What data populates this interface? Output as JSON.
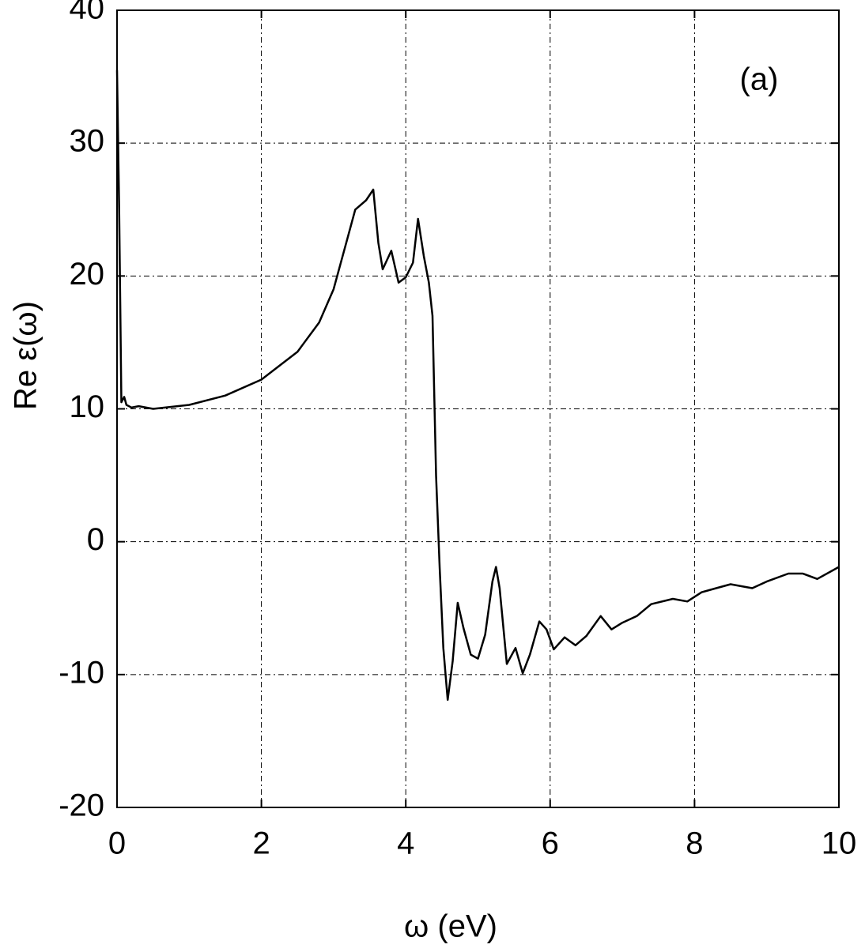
{
  "chart_data": {
    "type": "line",
    "x_label": "ω  (eV)",
    "y_label": "Re ε(ω)",
    "annotation": "(a)",
    "x": [
      0.0,
      0.03,
      0.06,
      0.1,
      0.13,
      0.2,
      0.3,
      0.5,
      1.0,
      1.5,
      2.0,
      2.5,
      2.8,
      3.0,
      3.2,
      3.3,
      3.45,
      3.55,
      3.62,
      3.68,
      3.8,
      3.9,
      4.0,
      4.1,
      4.17,
      4.25,
      4.32,
      4.37,
      4.42,
      4.47,
      4.52,
      4.58,
      4.65,
      4.72,
      4.8,
      4.9,
      5.0,
      5.1,
      5.2,
      5.25,
      5.3,
      5.4,
      5.52,
      5.62,
      5.72,
      5.85,
      5.95,
      6.05,
      6.2,
      6.35,
      6.5,
      6.7,
      6.85,
      7.0,
      7.2,
      7.4,
      7.7,
      7.9,
      8.1,
      8.3,
      8.5,
      8.8,
      9.0,
      9.3,
      9.5,
      9.7,
      10.0
    ],
    "series": [
      {
        "color": "#000000",
        "values": [
          35.5,
          25,
          10.5,
          10.9,
          10.3,
          10.1,
          10.2,
          10.0,
          10.3,
          11.0,
          12.2,
          14.3,
          16.5,
          19,
          23,
          25,
          25.7,
          26.5,
          22.5,
          20.5,
          21.9,
          19.5,
          19.9,
          21,
          24.3,
          21.5,
          19.5,
          17,
          5,
          -2,
          -8,
          -11.9,
          -9,
          -4.6,
          -6.5,
          -8.5,
          -8.8,
          -7,
          -3,
          -1.9,
          -3.5,
          -9.2,
          -8.0,
          -9.9,
          -8.5,
          -6,
          -6.6,
          -8.1,
          -7.2,
          -7.8,
          -7.1,
          -5.6,
          -6.6,
          -6.1,
          -5.6,
          -4.7,
          -4.3,
          -4.5,
          -3.8,
          -3.5,
          -3.2,
          -3.5,
          -3.0,
          -2.4,
          -2.4,
          -2.8,
          -1.9
        ]
      }
    ],
    "xlim": [
      0,
      10
    ],
    "xticks": [
      0,
      2,
      4,
      6,
      8,
      10
    ],
    "ylim": [
      -20,
      40
    ],
    "yticks": [
      -20,
      -10,
      0,
      10,
      20,
      30,
      40
    ],
    "grid": true
  }
}
